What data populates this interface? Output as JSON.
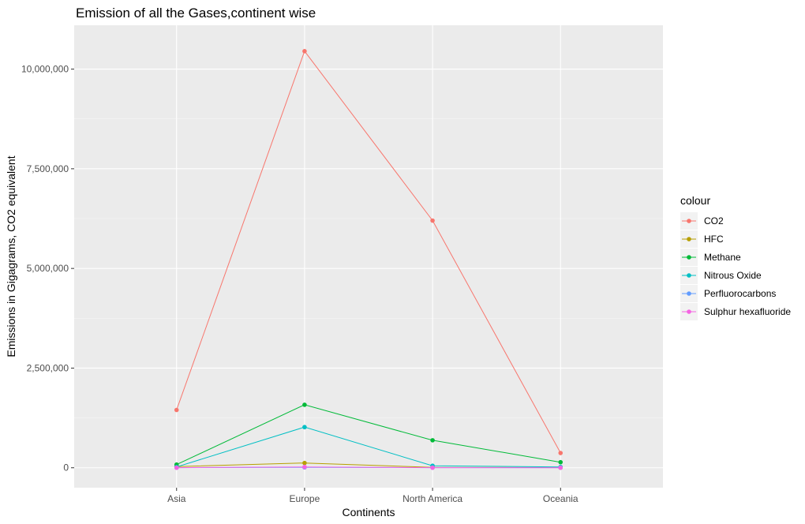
{
  "chart_data": {
    "type": "line",
    "title": "Emission of all the Gases,continent wise",
    "xlabel": "Continents",
    "ylabel": "Emissions in Gigagrams, CO2 equivalent",
    "categories": [
      "Asia",
      "Europe",
      "North America",
      "Oceania"
    ],
    "ylim": [
      -500000,
      11100000
    ],
    "yticks": [
      0,
      2500000,
      5000000,
      7500000,
      10000000
    ],
    "ytick_labels": [
      "0",
      "2,500,000",
      "5,000,000",
      "7,500,000",
      "10,000,000"
    ],
    "grid": true,
    "legend": {
      "title": "colour",
      "position": "right"
    },
    "series": [
      {
        "name": "CO2",
        "color": "#F8766D",
        "values": [
          1450000,
          10450000,
          6200000,
          370000
        ]
      },
      {
        "name": "HFC",
        "color": "#B79F00",
        "values": [
          30000,
          120000,
          10000,
          5000
        ]
      },
      {
        "name": "Methane",
        "color": "#00BA38",
        "values": [
          80000,
          1580000,
          690000,
          140000
        ]
      },
      {
        "name": "Nitrous Oxide",
        "color": "#00BFC4",
        "values": [
          20000,
          1020000,
          50000,
          20000
        ]
      },
      {
        "name": "Perfluorocarbons",
        "color": "#619CFF",
        "values": [
          3000,
          10000,
          3000,
          3000
        ]
      },
      {
        "name": "Sulphur hexafluoride",
        "color": "#F564E3",
        "values": [
          2000,
          20000,
          2000,
          1000
        ]
      }
    ]
  }
}
